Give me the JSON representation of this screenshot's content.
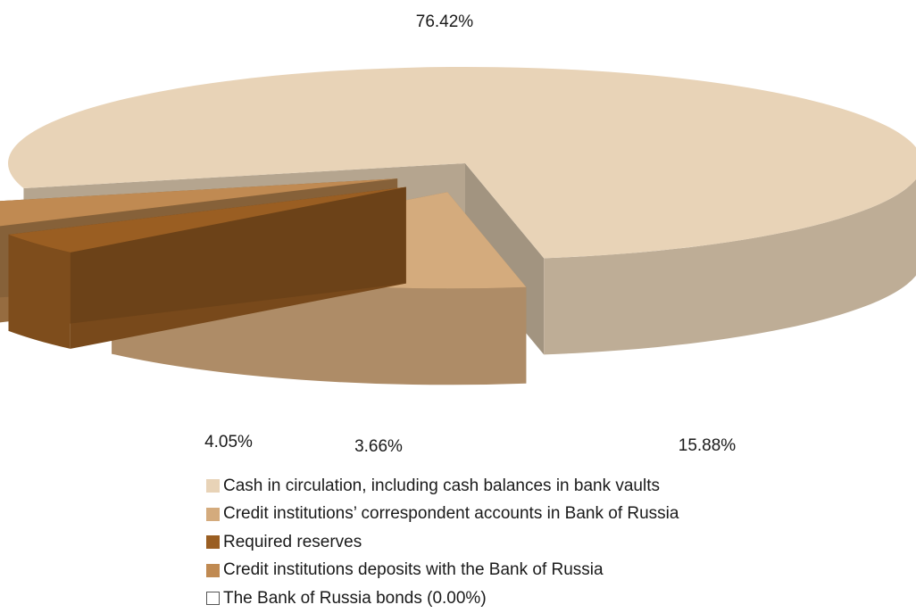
{
  "chart_data": {
    "type": "pie",
    "style": "3d-exploded",
    "slices": [
      {
        "label": "Cash in circulation, including cash balances in bank vaults",
        "value": 76.42,
        "data_label": "76.42%",
        "color": "#e8d3b7"
      },
      {
        "label": "Credit institutions’ correspondent accounts in Bank of Russia",
        "value": 15.88,
        "data_label": "15.88%",
        "color": "#d4ab7d"
      },
      {
        "label": "Required reserves",
        "value": 3.66,
        "data_label": "3.66%",
        "color": "#9a5e22"
      },
      {
        "label": "Credit institutions deposits with the Bank of Russia",
        "value": 4.05,
        "data_label": "4.05%",
        "color": "#c08a52"
      },
      {
        "label": "The Bank of Russia  bonds (0.00%)",
        "value": 0.0,
        "data_label": "",
        "color": "#ffffff"
      }
    ],
    "legend_position": "bottom"
  }
}
